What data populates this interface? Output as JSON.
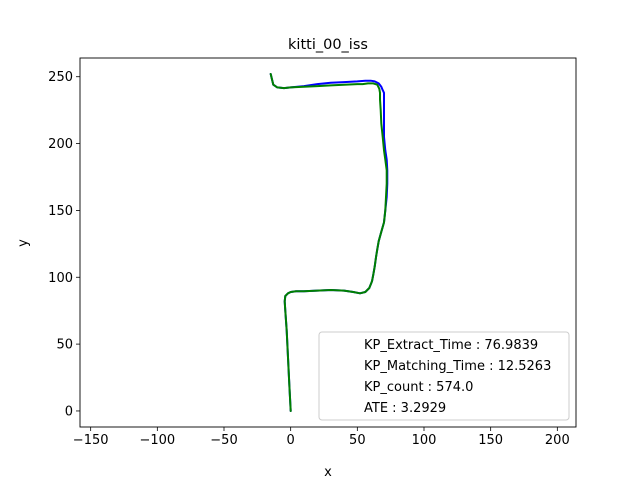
{
  "chart_data": {
    "type": "line",
    "title": "kitti_00_iss",
    "xlabel": "x",
    "ylabel": "y",
    "xlim": [
      -158,
      214
    ],
    "ylim": [
      -12,
      264
    ],
    "xticks": [
      -150,
      -100,
      -50,
      0,
      50,
      100,
      150,
      200
    ],
    "xtick_labels": [
      "−150",
      "−100",
      "−50",
      "0",
      "50",
      "100",
      "150",
      "200"
    ],
    "yticks": [
      0,
      50,
      100,
      150,
      200,
      250
    ],
    "ytick_labels": [
      "0",
      "50",
      "100",
      "150",
      "200",
      "250"
    ],
    "grid": false,
    "legend_position": "bottom-right",
    "legend": [
      "KP_Extract_Time : 76.9839",
      "KP_Matching_Time : 12.5263",
      "KP_count : 574.0",
      "ATE : 3.2929"
    ],
    "series": [
      {
        "color": "#0000ff",
        "x": [
          0,
          -1,
          -2,
          -3,
          -4,
          -4.5,
          -4,
          -2,
          0,
          4,
          10,
          20,
          30,
          40,
          47,
          52,
          56,
          59,
          61,
          62,
          63,
          64,
          65,
          66,
          68,
          70,
          71,
          72,
          72.5,
          72.5,
          72,
          71,
          70,
          70,
          70,
          70,
          70,
          69,
          68,
          66,
          63,
          60,
          56,
          50,
          40,
          30,
          20,
          10,
          0,
          -5,
          -10,
          -13,
          -14,
          -15
        ],
        "y": [
          0,
          20,
          40,
          60,
          75,
          82,
          86,
          88,
          89,
          89.5,
          89.5,
          90,
          90.5,
          90,
          89,
          88,
          89,
          92,
          97,
          102,
          108,
          115,
          121,
          127,
          134,
          141,
          150,
          160,
          170,
          180,
          188,
          195,
          205,
          215,
          225,
          233,
          238,
          240,
          242.5,
          245,
          246.5,
          247,
          247,
          246.5,
          246,
          245.5,
          244.5,
          243,
          242,
          241.5,
          242,
          244,
          248,
          252
        ]
      },
      {
        "color": "#008000",
        "x": [
          0,
          -1,
          -2,
          -3,
          -4,
          -4.5,
          -4,
          -2,
          0,
          4,
          10,
          20,
          30,
          40,
          47,
          52,
          56,
          59,
          61,
          62,
          63,
          64,
          65,
          66,
          68,
          70,
          71,
          71.5,
          72,
          72,
          71,
          70,
          69,
          68,
          67.5,
          67,
          67,
          66.5,
          65,
          62,
          58,
          54,
          50,
          40,
          30,
          20,
          10,
          0,
          -5,
          -10,
          -13,
          -14,
          -15
        ],
        "y": [
          0,
          20,
          40,
          60,
          75,
          82,
          86,
          88,
          89,
          89.5,
          89.5,
          90,
          90.5,
          90,
          89,
          88,
          89,
          92,
          97,
          102,
          108,
          115,
          121,
          127,
          134,
          141,
          150,
          160,
          170,
          180,
          188,
          195,
          205,
          215,
          225,
          233,
          238,
          241,
          244,
          245,
          245,
          244.5,
          244.5,
          244,
          243.5,
          243,
          242.5,
          242,
          241.5,
          242,
          244,
          248,
          252
        ]
      }
    ]
  }
}
